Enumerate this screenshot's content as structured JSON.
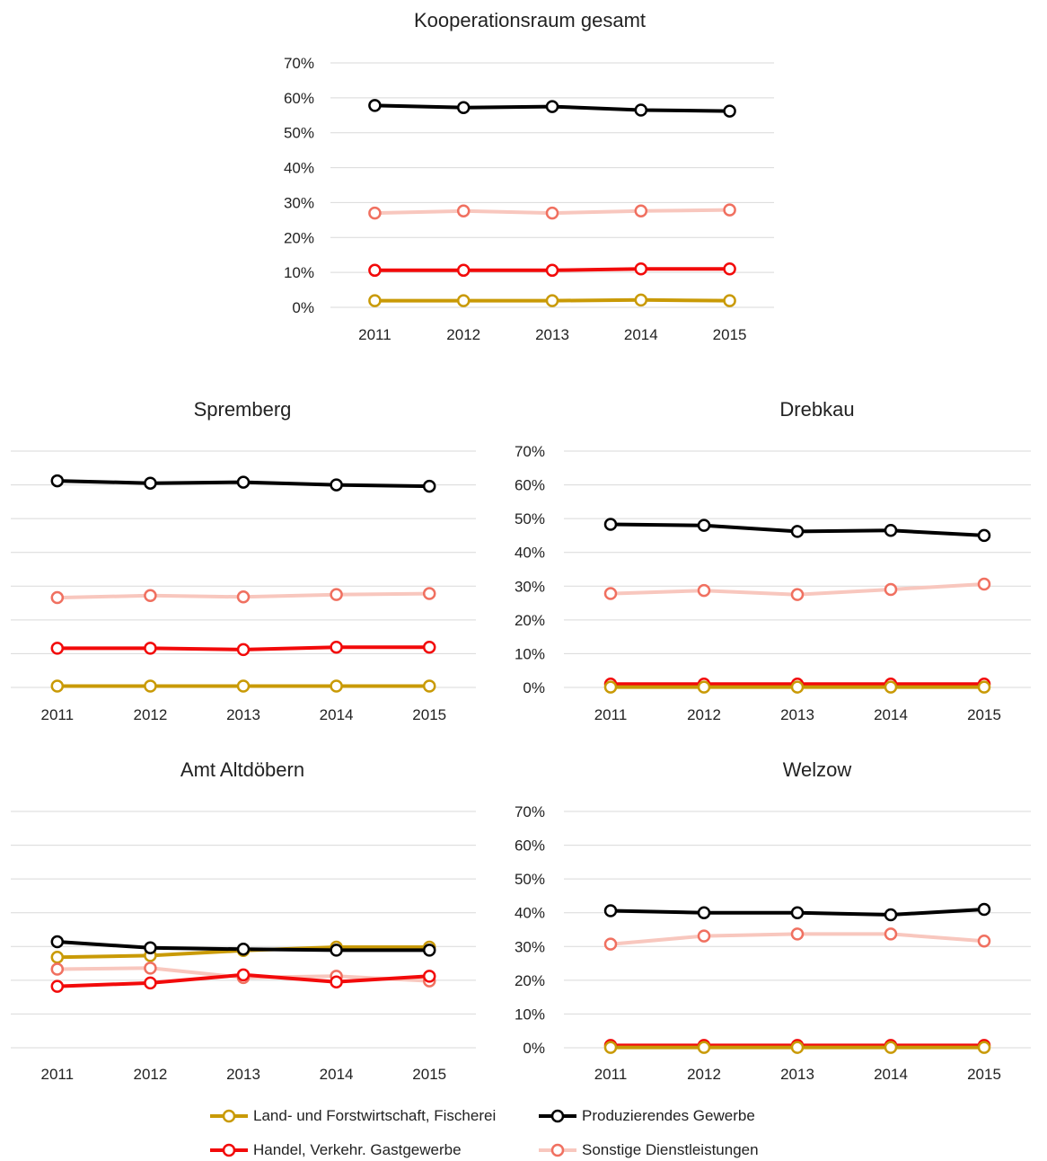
{
  "colors": {
    "land": "#C99A06",
    "prod": "#000000",
    "handel": "#F20A0A",
    "sonst_line": "#F8C7BE",
    "sonst_marker": "#F07060",
    "grid": "#D9D9D9",
    "text": "#222222"
  },
  "legend": {
    "items": [
      {
        "key": "land",
        "label": "Land- und Forstwirtschaft, Fischerei"
      },
      {
        "key": "prod",
        "label": "Produzierendes Gewerbe"
      },
      {
        "key": "handel",
        "label": "Handel, Verkehr. Gastgewerbe"
      },
      {
        "key": "sonst",
        "label": "Sonstige Dienstleistungen"
      }
    ]
  },
  "chart_data": [
    {
      "type": "line",
      "title": "Kooperationsraum gesamt",
      "x": [
        "2011",
        "2012",
        "2013",
        "2014",
        "2015"
      ],
      "ylim": [
        0,
        70
      ],
      "yticks": [
        "0%",
        "10%",
        "20%",
        "30%",
        "40%",
        "50%",
        "60%",
        "70%"
      ],
      "show_y_labels": true,
      "series": [
        {
          "key": "prod",
          "name": "Produzierendes Gewerbe",
          "values": [
            57.8,
            57.2,
            57.5,
            56.5,
            56.2
          ]
        },
        {
          "key": "sonst",
          "name": "Sonstige Dienstleistungen",
          "values": [
            27.0,
            27.6,
            27.0,
            27.6,
            27.9
          ]
        },
        {
          "key": "handel",
          "name": "Handel, Verkehr. Gastgewerbe",
          "values": [
            10.6,
            10.6,
            10.6,
            11.0,
            11.0
          ]
        },
        {
          "key": "land",
          "name": "Land- und Forstwirtschaft, Fischerei",
          "values": [
            1.9,
            1.9,
            1.9,
            2.1,
            1.9
          ]
        }
      ]
    },
    {
      "type": "line",
      "title": "Spremberg",
      "x": [
        "2011",
        "2012",
        "2013",
        "2014",
        "2015"
      ],
      "ylim": [
        0,
        70
      ],
      "yticks": [
        "0%",
        "10%",
        "20%",
        "30%",
        "40%",
        "50%",
        "60%",
        "70%"
      ],
      "show_y_labels": false,
      "series": [
        {
          "key": "prod",
          "name": "Produzierendes Gewerbe",
          "values": [
            61.2,
            60.5,
            60.8,
            60.0,
            59.6
          ]
        },
        {
          "key": "sonst",
          "name": "Sonstige Dienstleistungen",
          "values": [
            26.6,
            27.2,
            26.8,
            27.5,
            27.8
          ]
        },
        {
          "key": "handel",
          "name": "Handel, Verkehr. Gastgewerbe",
          "values": [
            11.6,
            11.6,
            11.2,
            11.9,
            11.9
          ]
        },
        {
          "key": "land",
          "name": "Land- und Forstwirtschaft, Fischerei",
          "values": [
            0.4,
            0.4,
            0.4,
            0.4,
            0.4
          ]
        }
      ]
    },
    {
      "type": "line",
      "title": "Drebkau",
      "x": [
        "2011",
        "2012",
        "2013",
        "2014",
        "2015"
      ],
      "ylim": [
        0,
        70
      ],
      "yticks": [
        "0%",
        "10%",
        "20%",
        "30%",
        "40%",
        "50%",
        "60%",
        "70%"
      ],
      "show_y_labels": true,
      "series": [
        {
          "key": "prod",
          "name": "Produzierendes Gewerbe",
          "values": [
            48.3,
            48.0,
            46.2,
            46.5,
            45.0
          ]
        },
        {
          "key": "sonst",
          "name": "Sonstige Dienstleistungen",
          "values": [
            27.8,
            28.7,
            27.5,
            29.0,
            30.6
          ]
        },
        {
          "key": "handel",
          "name": "Handel, Verkehr. Gastgewerbe",
          "values": [
            1.0,
            1.0,
            1.0,
            1.0,
            1.0
          ]
        },
        {
          "key": "land",
          "name": "Land- und Forstwirtschaft, Fischerei",
          "values": [
            0.1,
            0.1,
            0.1,
            0.1,
            0.1
          ]
        }
      ]
    },
    {
      "type": "line",
      "title": "Amt Altdöbern",
      "x": [
        "2011",
        "2012",
        "2013",
        "2014",
        "2015"
      ],
      "ylim": [
        0,
        70
      ],
      "yticks": [
        "0%",
        "10%",
        "20%",
        "30%",
        "40%",
        "50%",
        "60%",
        "70%"
      ],
      "show_y_labels": false,
      "series": [
        {
          "key": "land",
          "name": "Land- und Forstwirtschaft, Fischerei",
          "values": [
            26.8,
            27.3,
            28.8,
            29.8,
            29.8
          ]
        },
        {
          "key": "prod",
          "name": "Produzierendes Gewerbe",
          "values": [
            31.4,
            29.6,
            29.2,
            28.9,
            28.9
          ]
        },
        {
          "key": "sonst",
          "name": "Sonstige Dienstleistungen",
          "values": [
            23.3,
            23.6,
            20.8,
            21.2,
            19.8
          ]
        },
        {
          "key": "handel",
          "name": "Handel, Verkehr. Gastgewerbe",
          "values": [
            18.2,
            19.2,
            21.6,
            19.5,
            21.2
          ]
        }
      ]
    },
    {
      "type": "line",
      "title": "Welzow",
      "x": [
        "2011",
        "2012",
        "2013",
        "2014",
        "2015"
      ],
      "ylim": [
        0,
        70
      ],
      "yticks": [
        "0%",
        "10%",
        "20%",
        "30%",
        "40%",
        "50%",
        "60%",
        "70%"
      ],
      "show_y_labels": true,
      "series": [
        {
          "key": "prod",
          "name": "Produzierendes Gewerbe",
          "values": [
            40.6,
            40.0,
            40.0,
            39.4,
            41.0
          ]
        },
        {
          "key": "sonst",
          "name": "Sonstige Dienstleistungen",
          "values": [
            30.7,
            33.1,
            33.7,
            33.7,
            31.6
          ]
        },
        {
          "key": "handel",
          "name": "Handel, Verkehr. Gastgewerbe",
          "values": [
            0.7,
            0.7,
            0.7,
            0.7,
            0.7
          ]
        },
        {
          "key": "land",
          "name": "Land- und Forstwirtschaft, Fischerei",
          "values": [
            0.1,
            0.1,
            0.1,
            0.1,
            0.1
          ]
        }
      ]
    }
  ]
}
